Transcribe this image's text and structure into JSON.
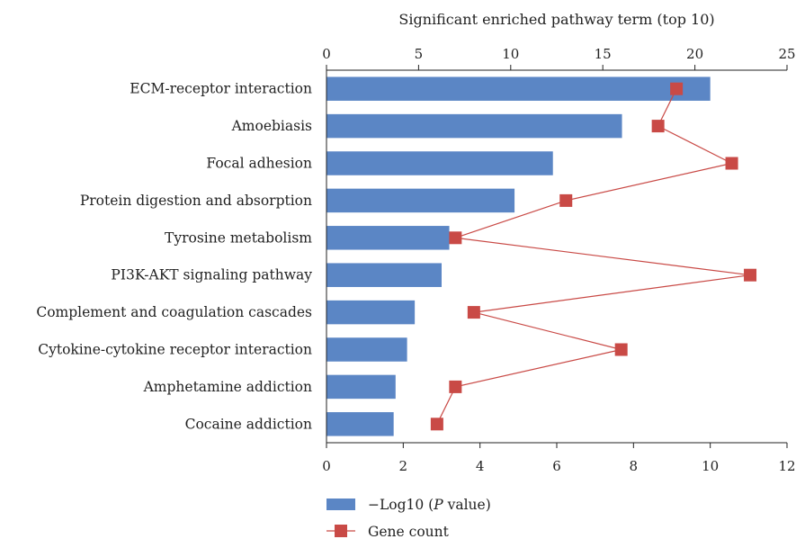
{
  "chart_data": {
    "type": "bar",
    "orientation": "horizontal",
    "title": "Significant enriched pathway term (top 10)",
    "categories": [
      "ECM-receptor interaction",
      "Amoebiasis",
      "Focal adhesion",
      "Protein digestion and absorption",
      "Tyrosine metabolism",
      "PI3K-AKT signaling pathway",
      "Complement and coagulation cascades",
      "Cytokine-cytokine receptor interaction",
      "Amphetamine addiction",
      "Cocaine addiction"
    ],
    "series": [
      {
        "name_prefix": "−Log10 (",
        "name_italic": "P",
        "name_suffix": " value)",
        "type": "bar",
        "axis": "bottom",
        "color": "#5b86c5",
        "values": [
          10.0,
          7.7,
          5.9,
          4.9,
          3.2,
          3.0,
          2.3,
          2.1,
          1.8,
          1.75
        ]
      },
      {
        "name": "Gene count",
        "type": "line",
        "axis": "top",
        "color": "#c94a46",
        "values": [
          19,
          18,
          22,
          13,
          7,
          23,
          8,
          16,
          7,
          6
        ]
      }
    ],
    "x_bottom": {
      "lim": [
        0,
        12
      ],
      "ticks": [
        "0",
        "2",
        "4",
        "6",
        "8",
        "10",
        "12"
      ]
    },
    "x_top": {
      "lim": [
        0,
        25
      ],
      "ticks": [
        "0",
        "5",
        "10",
        "15",
        "20",
        "25"
      ]
    },
    "grid": false,
    "legend_position": "bottom-left"
  }
}
